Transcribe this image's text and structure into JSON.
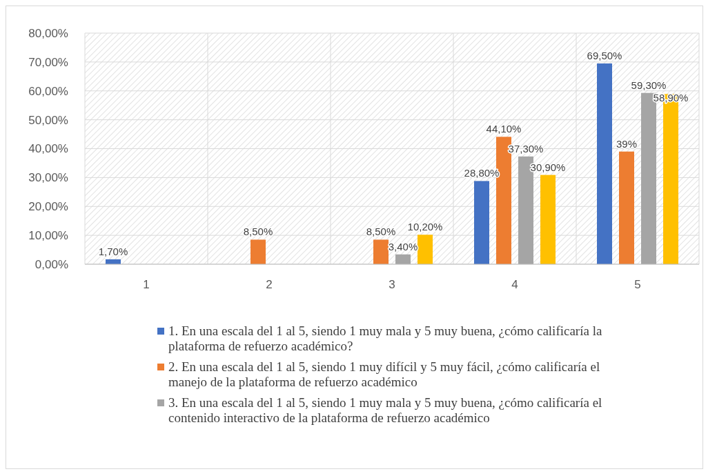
{
  "chart_data": {
    "type": "bar",
    "categories": [
      "1",
      "2",
      "3",
      "4",
      "5"
    ],
    "series": [
      {
        "name": "1. En una escala del 1 al 5, siendo 1 muy mala y 5 muy buena, ¿cómo calificaría la plataforma de refuerzo académico?",
        "color": "#4472c4",
        "values": [
          1.7,
          null,
          null,
          28.8,
          69.5
        ],
        "value_labels": [
          "1,70%",
          null,
          null,
          "28,80%",
          "69,50%"
        ]
      },
      {
        "name": "2. En una escala del 1 al 5, siendo 1 muy difícil y 5 muy fácil, ¿cómo calificaría el manejo de la plataforma de refuerzo académico",
        "color": "#ed7d31",
        "values": [
          null,
          8.5,
          8.5,
          44.1,
          39
        ],
        "value_labels": [
          null,
          "8,50%",
          "8,50%",
          "44,10%",
          "39%"
        ]
      },
      {
        "name": "3. En una escala del 1 al 5, siendo 1 muy mala y 5 muy buena, ¿cómo calificaría el contenido interactivo de la plataforma de refuerzo académico",
        "color": "#a5a5a5",
        "values": [
          null,
          null,
          3.4,
          37.3,
          59.3
        ],
        "value_labels": [
          null,
          null,
          "3,40%",
          "37,30%",
          "59,30%"
        ]
      },
      {
        "color": "#ffc000",
        "values": [
          null,
          null,
          10.2,
          30.9,
          58.9
        ],
        "value_labels": [
          null,
          null,
          "10,20%",
          "30,90%",
          "58,90%"
        ]
      }
    ],
    "ylim": [
      0,
      80
    ],
    "yticks": [
      {
        "value": 0,
        "label": "0,00%"
      },
      {
        "value": 10,
        "label": "10,00%"
      },
      {
        "value": 20,
        "label": "20,00%"
      },
      {
        "value": 30,
        "label": "30,00%"
      },
      {
        "value": 40,
        "label": "40,00%"
      },
      {
        "value": 50,
        "label": "50,00%"
      },
      {
        "value": 60,
        "label": "60,00%"
      },
      {
        "value": 70,
        "label": "70,00%"
      },
      {
        "value": 80,
        "label": "80,00%"
      }
    ],
    "grid": true,
    "legend": "bottom"
  }
}
